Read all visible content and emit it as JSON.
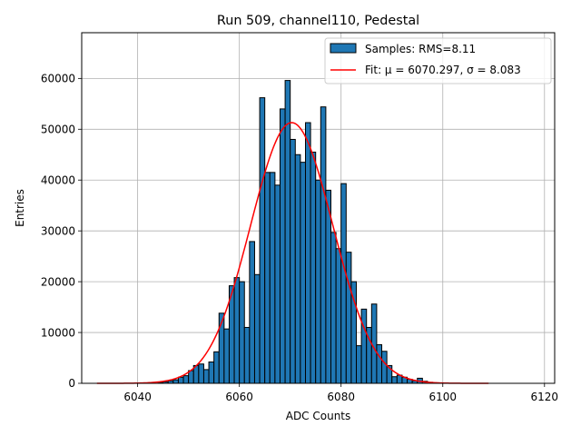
{
  "chart_data": {
    "type": "bar",
    "title": "Run 509, channel110, Pedestal",
    "xlabel": "ADC Counts",
    "ylabel": "Entries",
    "xlim": [
      6029,
      6122
    ],
    "ylim": [
      0,
      69000
    ],
    "xticks": [
      6040,
      6060,
      6080,
      6100,
      6120
    ],
    "yticks": [
      0,
      10000,
      20000,
      30000,
      40000,
      50000,
      60000
    ],
    "grid": true,
    "legend_position": "top-right",
    "histogram": {
      "name": "Samples: RMS=8.11",
      "color": "#1f77b4",
      "edgecolor": "#000000",
      "bin_width": 1,
      "bin_starts": [
        6044,
        6045,
        6046,
        6047,
        6048,
        6049,
        6050,
        6051,
        6052,
        6053,
        6054,
        6055,
        6056,
        6057,
        6058,
        6059,
        6060,
        6061,
        6062,
        6063,
        6064,
        6065,
        6066,
        6067,
        6068,
        6069,
        6070,
        6071,
        6072,
        6073,
        6074,
        6075,
        6076,
        6077,
        6078,
        6079,
        6080,
        6081,
        6082,
        6083,
        6084,
        6085,
        6086,
        6087,
        6088,
        6089,
        6090,
        6091,
        6092,
        6093,
        6094,
        6095,
        6096,
        6097,
        6098,
        6099
      ],
      "counts": [
        200,
        300,
        500,
        700,
        1200,
        1500,
        2500,
        3500,
        3800,
        2700,
        4200,
        6200,
        13800,
        10700,
        19200,
        20800,
        20000,
        11000,
        27900,
        21400,
        56200,
        41500,
        41500,
        39000,
        54000,
        59600,
        48000,
        45000,
        43500,
        51300,
        45500,
        40000,
        54400,
        38000,
        29700,
        26500,
        39300,
        25800,
        20000,
        7400,
        14600,
        11000,
        15600,
        7600,
        6300,
        3500,
        1300,
        1600,
        1200,
        800,
        500,
        1000,
        400,
        200,
        100,
        50
      ]
    },
    "fit": {
      "name": "Fit: μ = 6070.297, σ = 8.083",
      "color": "#ff0000",
      "function": "gaussian",
      "amplitude": 51300,
      "mu": 6070.297,
      "sigma": 8.083,
      "x_range": [
        6032,
        6109
      ]
    }
  }
}
